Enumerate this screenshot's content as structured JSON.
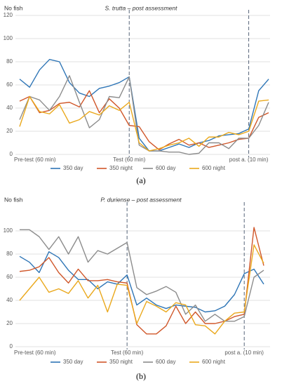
{
  "chart_data": [
    {
      "type": "line",
      "title": "S. trutta – post assessment",
      "y_label": "No fish",
      "caption": "(a)",
      "categories": [
        "Pre-test (60 min)",
        null,
        null,
        null,
        null,
        null,
        null,
        null,
        null,
        null,
        null,
        "Test (60 min)",
        null,
        null,
        null,
        null,
        null,
        null,
        null,
        null,
        null,
        null,
        null,
        "post a. (10 min)",
        null,
        null
      ],
      "ylim": [
        0,
        120
      ],
      "yticks": [
        0,
        20,
        40,
        60,
        80,
        100,
        120
      ],
      "grid": true,
      "series": [
        {
          "name": "350 day",
          "color": "#2e75b6",
          "values": [
            65,
            58,
            73,
            82,
            80,
            62,
            53,
            50,
            57,
            59,
            62,
            67,
            14,
            3,
            3,
            6,
            9,
            6,
            10,
            12,
            16,
            17,
            18,
            22,
            55,
            65
          ]
        },
        {
          "name": "350 night",
          "color": "#d0572a",
          "values": [
            46,
            50,
            36,
            38,
            44,
            45,
            41,
            55,
            36,
            48,
            40,
            25,
            24,
            11,
            4,
            9,
            13,
            8,
            10,
            6,
            8,
            10,
            13,
            14,
            32,
            36
          ]
        },
        {
          "name": "600 day",
          "color": "#8c8c8c",
          "values": [
            30,
            50,
            47,
            38,
            50,
            68,
            45,
            23,
            30,
            50,
            49,
            67,
            8,
            3,
            3,
            2,
            2,
            0,
            1,
            10,
            10,
            5,
            14,
            14,
            25,
            45
          ]
        },
        {
          "name": "600 night",
          "color": "#eaa81c",
          "values": [
            24,
            50,
            37,
            35,
            43,
            27,
            30,
            37,
            34,
            42,
            38,
            45,
            10,
            3,
            5,
            8,
            10,
            14,
            7,
            15,
            15,
            19,
            17,
            20,
            46,
            47
          ]
        }
      ]
    },
    {
      "type": "line",
      "title": "P. duriense – post assessment",
      "y_label": "No fish",
      "caption": "(b)",
      "categories": [
        "Pre-test (60 min)",
        null,
        null,
        null,
        null,
        null,
        null,
        null,
        null,
        null,
        null,
        "Test (60 min)",
        null,
        null,
        null,
        null,
        null,
        null,
        null,
        null,
        null,
        null,
        null,
        "post a. (10 min)",
        null,
        null
      ],
      "ylim": [
        0,
        120
      ],
      "yticks": [
        0,
        20,
        40,
        60,
        80,
        100
      ],
      "grid": true,
      "series": [
        {
          "name": "350 day",
          "color": "#2e75b6",
          "values": [
            78,
            73,
            64,
            82,
            77,
            66,
            58,
            58,
            50,
            56,
            54,
            62,
            36,
            42,
            36,
            33,
            36,
            35,
            34,
            30,
            31,
            35,
            45,
            63,
            67,
            54
          ]
        },
        {
          "name": "350 night",
          "color": "#d0572a",
          "values": [
            65,
            66,
            69,
            77,
            64,
            55,
            67,
            57,
            57,
            58,
            56,
            55,
            19,
            11,
            11,
            18,
            35,
            20,
            30,
            20,
            20,
            22,
            26,
            28,
            103,
            70
          ]
        },
        {
          "name": "600 day",
          "color": "#8c8c8c",
          "values": [
            101,
            101,
            95,
            84,
            95,
            80,
            95,
            73,
            83,
            80,
            85,
            90,
            51,
            45,
            48,
            52,
            47,
            28,
            36,
            22,
            28,
            22,
            22,
            26,
            60,
            66
          ]
        },
        {
          "name": "600 night",
          "color": "#eaa81c",
          "values": [
            40,
            50,
            60,
            47,
            50,
            46,
            57,
            42,
            53,
            30,
            54,
            53,
            20,
            39,
            35,
            30,
            38,
            36,
            19,
            18,
            11,
            22,
            29,
            30,
            88,
            72
          ]
        }
      ]
    }
  ]
}
